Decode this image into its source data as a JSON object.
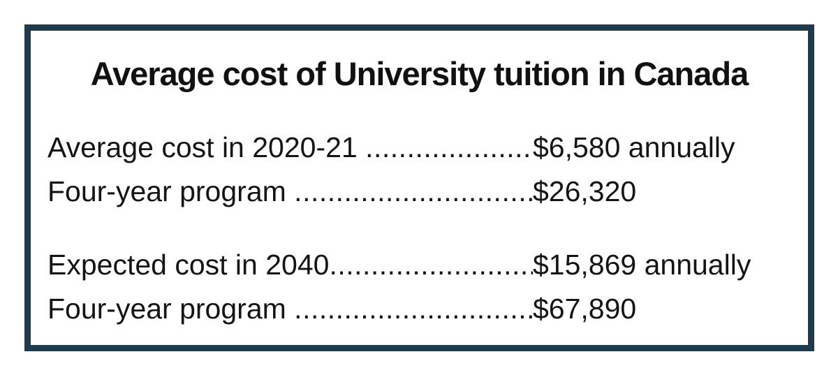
{
  "frame": {
    "border_color": "#1e3a4c",
    "background": "#ffffff"
  },
  "title": "Average cost of University tuition in Canada",
  "leader_dots": "................................................................................",
  "sections": [
    {
      "rows": [
        {
          "label": "Average cost in 2020-21 ",
          "value": "$6,580 annually"
        },
        {
          "label": "Four-year program ",
          "value": "$26,320"
        }
      ]
    },
    {
      "rows": [
        {
          "label": "Expected cost in 2040",
          "value": "$15,869 annually"
        },
        {
          "label": "Four-year program ",
          "value": "$67,890"
        }
      ]
    }
  ]
}
